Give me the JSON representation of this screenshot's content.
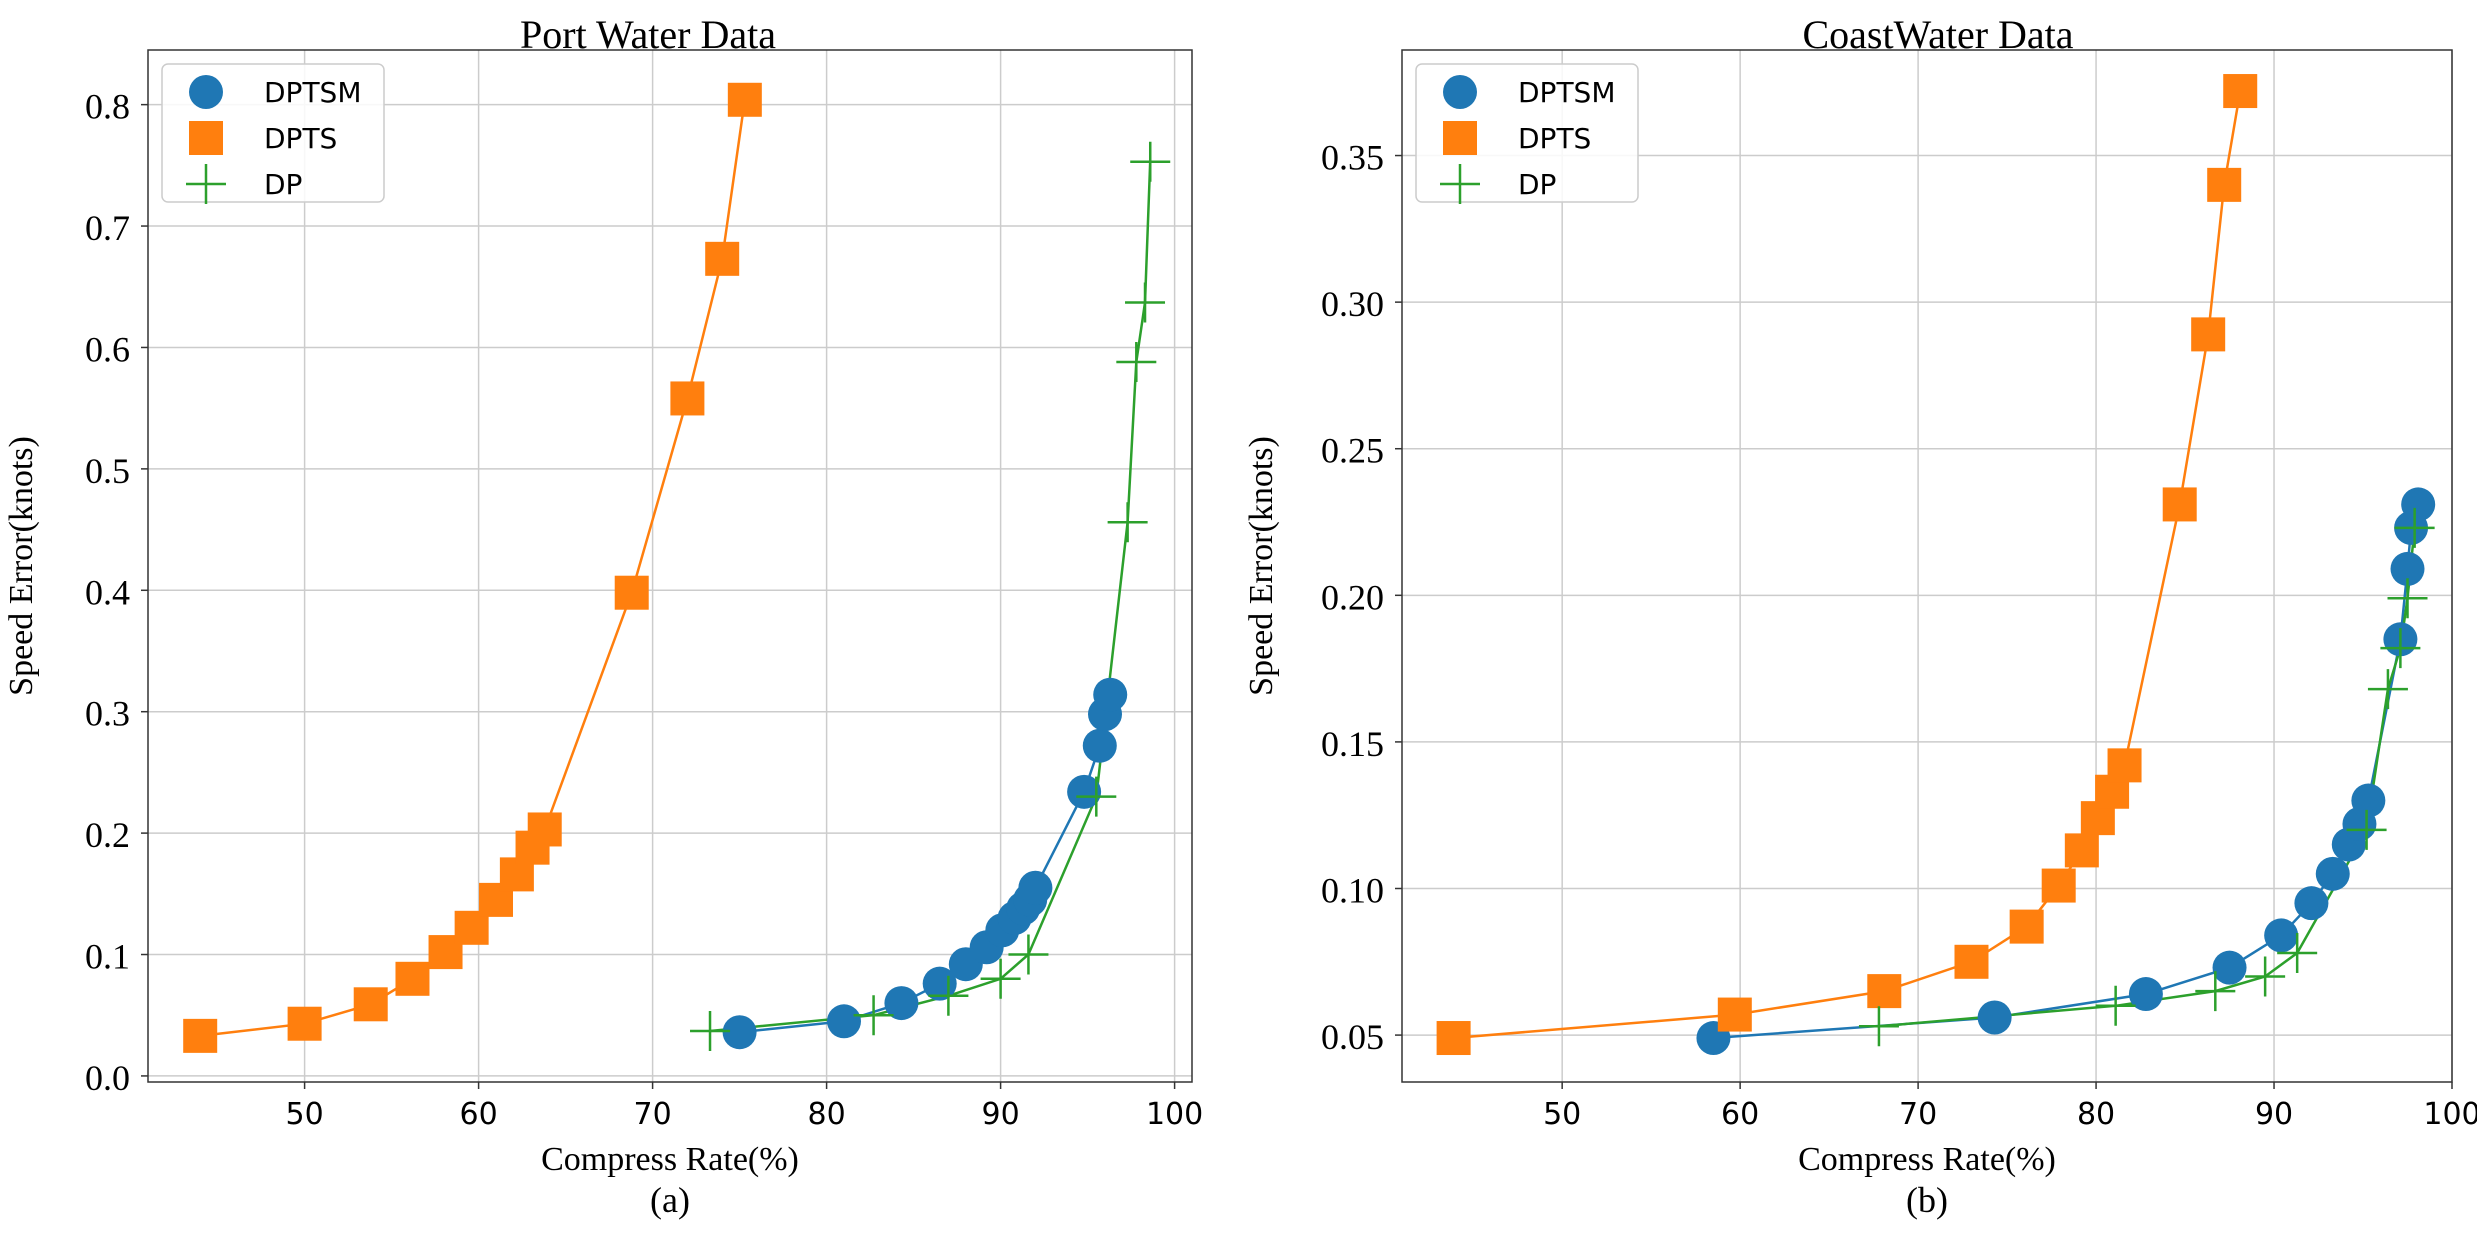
{
  "colors": {
    "dptsm": "#1f77b4",
    "dpts": "#ff7f0e",
    "dp": "#2ca02c",
    "grid": "#cccccc",
    "axis": "#333333",
    "text": "#000000"
  },
  "chart_data": [
    {
      "type": "scatter",
      "title": "Port Water Data",
      "xlabel": "Compress Rate(%)",
      "ylabel": "Speed Error(knots)",
      "caption": "(a)",
      "xlim": [
        41,
        101
      ],
      "ylim": [
        -0.005,
        0.845
      ],
      "xticks": [
        50,
        60,
        70,
        80,
        90,
        100
      ],
      "yticks": [
        0.0,
        0.1,
        0.2,
        0.3,
        0.4,
        0.5,
        0.6,
        0.7,
        0.8
      ],
      "xtick_labels": [
        "50",
        "60",
        "70",
        "80",
        "90",
        "100"
      ],
      "ytick_labels": [
        "0.0",
        "0.1",
        "0.2",
        "0.3",
        "0.4",
        "0.5",
        "0.6",
        "0.7",
        "0.8"
      ],
      "grid": true,
      "legend_position": "top-left",
      "series": [
        {
          "name": "DPTSM",
          "marker": "circle",
          "color_key": "dptsm",
          "x": [
            75.0,
            81.0,
            84.3,
            86.5,
            88.0,
            89.2,
            90.1,
            90.8,
            91.3,
            91.7,
            92.0,
            94.8,
            95.7,
            96.0,
            96.3
          ],
          "y": [
            0.036,
            0.045,
            0.06,
            0.076,
            0.092,
            0.106,
            0.12,
            0.13,
            0.138,
            0.145,
            0.155,
            0.234,
            0.272,
            0.298,
            0.314
          ]
        },
        {
          "name": "DPTS",
          "marker": "square",
          "color_key": "dpts",
          "x": [
            44.0,
            50.0,
            53.8,
            56.2,
            58.1,
            59.6,
            61.0,
            62.2,
            63.1,
            63.8,
            68.8,
            72.0,
            74.0,
            75.3
          ],
          "y": [
            0.033,
            0.043,
            0.059,
            0.08,
            0.102,
            0.122,
            0.145,
            0.166,
            0.188,
            0.203,
            0.398,
            0.558,
            0.673,
            0.804
          ]
        },
        {
          "name": "DP",
          "marker": "plus",
          "color_key": "dp",
          "x": [
            73.3,
            82.7,
            87.0,
            90.0,
            91.6,
            95.5,
            97.3,
            97.8,
            98.3,
            98.6
          ],
          "y": [
            0.037,
            0.05,
            0.066,
            0.08,
            0.1,
            0.23,
            0.456,
            0.588,
            0.637,
            0.753
          ]
        }
      ]
    },
    {
      "type": "scatter",
      "title": "CoastWater Data",
      "xlabel": "Compress Rate(%)",
      "ylabel": "Speed Error(knots)",
      "caption": "(b)",
      "xlim": [
        41,
        100
      ],
      "ylim": [
        0.034,
        0.386
      ],
      "xticks": [
        50,
        60,
        70,
        80,
        90,
        100
      ],
      "yticks": [
        0.05,
        0.1,
        0.15,
        0.2,
        0.25,
        0.3,
        0.35
      ],
      "xtick_labels": [
        "50",
        "60",
        "70",
        "80",
        "90",
        "100"
      ],
      "ytick_labels": [
        "0.05",
        "0.10",
        "0.15",
        "0.20",
        "0.25",
        "0.30",
        "0.35"
      ],
      "grid": true,
      "legend_position": "top-left",
      "series": [
        {
          "name": "DPTSM",
          "marker": "circle",
          "color_key": "dptsm",
          "x": [
            58.5,
            74.3,
            82.8,
            87.5,
            90.4,
            92.1,
            93.3,
            94.2,
            94.8,
            95.3,
            97.1,
            97.5,
            97.7,
            98.1
          ],
          "y": [
            0.049,
            0.056,
            0.064,
            0.073,
            0.084,
            0.095,
            0.105,
            0.115,
            0.122,
            0.13,
            0.185,
            0.209,
            0.223,
            0.231
          ]
        },
        {
          "name": "DPTS",
          "marker": "square",
          "color_key": "dpts",
          "x": [
            43.9,
            59.7,
            68.1,
            73.0,
            76.1,
            77.9,
            79.2,
            80.1,
            80.9,
            81.6,
            84.7,
            86.3,
            87.2,
            88.1
          ],
          "y": [
            0.049,
            0.057,
            0.065,
            0.075,
            0.087,
            0.101,
            0.113,
            0.124,
            0.133,
            0.142,
            0.231,
            0.289,
            0.34,
            0.372
          ]
        },
        {
          "name": "DP",
          "marker": "plus",
          "color_key": "dp",
          "x": [
            67.8,
            81.1,
            86.7,
            89.5,
            91.3,
            95.2,
            96.4,
            97.1,
            97.5,
            97.9
          ],
          "y": [
            0.053,
            0.06,
            0.065,
            0.07,
            0.078,
            0.12,
            0.168,
            0.182,
            0.199,
            0.223
          ]
        }
      ]
    }
  ]
}
